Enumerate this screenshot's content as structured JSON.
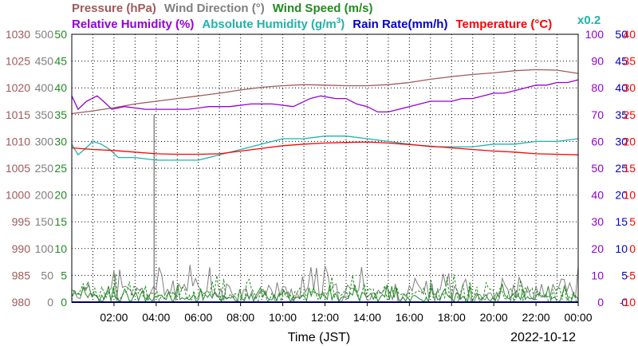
{
  "chart_data": {
    "type": "line",
    "legend": {
      "row1": [
        {
          "text": "Pressure (hPa)",
          "color": "#a05a5a"
        },
        {
          "text": "Wind Direction (°)",
          "color": "#808080"
        },
        {
          "text": "Wind Speed (m/s)",
          "color": "#228b22"
        }
      ],
      "row2": [
        {
          "text": "Relative Humidity (%)",
          "color": "#9400d3"
        },
        {
          "text": "Absolute Humidity (g/m",
          "sup": "3",
          "tail": ")",
          "color": "#20b2aa"
        },
        {
          "text": "Rain Rate(mm/h)",
          "color": "#0000cd"
        },
        {
          "text": "Temperature (°C)",
          "color": "#ff0000"
        }
      ],
      "scale_note": {
        "text": "x0.2",
        "color": "#20b2aa"
      }
    },
    "xlabel": "Time (JST)",
    "date": "2022-10-12",
    "x_range": [
      0,
      24
    ],
    "x_ticks": [
      {
        "h": 2,
        "label": "02:00"
      },
      {
        "h": 4,
        "label": "04:00"
      },
      {
        "h": 6,
        "label": "06:00"
      },
      {
        "h": 8,
        "label": "08:00"
      },
      {
        "h": 10,
        "label": "10:00"
      },
      {
        "h": 12,
        "label": "12:00"
      },
      {
        "h": 14,
        "label": "14:00"
      },
      {
        "h": 16,
        "label": "16:00"
      },
      {
        "h": 18,
        "label": "18:00"
      },
      {
        "h": 20,
        "label": "20:00"
      },
      {
        "h": 22,
        "label": "22:00"
      },
      {
        "h": 24,
        "label": "00:00"
      }
    ],
    "axes": [
      {
        "name": "Pressure (hPa)",
        "side": "left",
        "color": "#a05a5a",
        "ticks": [
          "980",
          "985",
          "990",
          "995",
          "1000",
          "1005",
          "1010",
          "1015",
          "1020",
          "1025",
          "1030"
        ],
        "ylim": [
          980,
          1030
        ]
      },
      {
        "name": "Wind Direction (°)",
        "side": "left",
        "color": "#808080",
        "ticks": [
          "0",
          "50",
          "100",
          "150",
          "200",
          "250",
          "300",
          "350",
          "400",
          "450",
          "500"
        ],
        "ylim": [
          0,
          500
        ]
      },
      {
        "name": "Wind Speed (m/s)",
        "side": "left",
        "color": "#228b22",
        "ticks": [
          "0",
          "5",
          "10",
          "15",
          "20",
          "25",
          "30",
          "35",
          "40",
          "45",
          "50"
        ],
        "ylim": [
          0,
          50
        ]
      },
      {
        "name": "Relative Humidity (%)",
        "side": "right",
        "color": "#9400d3",
        "ticks": [
          "0",
          "10",
          "20",
          "30",
          "40",
          "50",
          "60",
          "70",
          "80",
          "90",
          "100"
        ],
        "ylim": [
          0,
          100
        ]
      },
      {
        "name": "Rain Rate(mm/h)",
        "side": "right",
        "color": "#0000cd",
        "ticks": [
          "0",
          "5",
          "10",
          "15",
          "20",
          "25",
          "30",
          "35",
          "40",
          "45",
          "50"
        ],
        "ylim": [
          0,
          50
        ]
      },
      {
        "name": "Temperature (°C)",
        "side": "right",
        "color": "#ff0000",
        "ticks": [
          "-10",
          "-5",
          "0",
          "5",
          "10",
          "15",
          "20",
          "25",
          "30",
          "35",
          "40"
        ],
        "ylim": [
          -10,
          40
        ]
      }
    ],
    "grid": true,
    "series": [
      {
        "name": "Pressure (hPa)",
        "color": "#a05a5a",
        "axis": 0,
        "x": [
          0,
          1,
          2,
          3,
          4,
          5,
          6,
          7,
          8,
          9,
          10,
          11,
          12,
          13,
          14,
          15,
          16,
          17,
          18,
          19,
          20,
          21,
          22,
          23,
          24
        ],
        "values": [
          1015.2,
          1015.7,
          1016.3,
          1017.0,
          1017.5,
          1018.0,
          1018.5,
          1019.0,
          1019.6,
          1020.1,
          1020.4,
          1020.6,
          1020.5,
          1020.4,
          1020.4,
          1020.6,
          1021.0,
          1021.6,
          1022.1,
          1022.5,
          1022.8,
          1023.2,
          1023.4,
          1023.3,
          1022.7
        ]
      },
      {
        "name": "Relative Humidity (%)",
        "color": "#9400d3",
        "axis": 3,
        "x": [
          0,
          0.3,
          0.7,
          1.2,
          1.5,
          1.9,
          2.5,
          3.5,
          4.5,
          5.5,
          6.5,
          7.5,
          8.5,
          9.5,
          10.5,
          11.3,
          11.8,
          12.5,
          13.0,
          13.5,
          14.0,
          14.5,
          15.0,
          15.5,
          16.0,
          16.5,
          17.0,
          17.5,
          18.0,
          18.5,
          19.0,
          19.5,
          20.0,
          20.5,
          21.0,
          21.5,
          22.0,
          22.5,
          23.0,
          23.5,
          24.0
        ],
        "values": [
          77,
          72,
          75,
          77,
          75,
          72,
          73,
          72,
          72,
          72,
          73,
          73,
          74,
          74,
          73,
          76,
          77,
          76,
          76,
          74,
          73,
          71,
          71,
          72,
          73,
          74,
          75,
          75,
          75,
          76,
          76,
          77,
          78,
          78,
          79,
          80,
          81,
          81,
          82,
          82,
          83
        ]
      },
      {
        "name": "Absolute Humidity (g/m3)",
        "color": "#20b2aa",
        "axis": 3,
        "x": [
          0,
          0.3,
          0.6,
          1.0,
          1.4,
          1.8,
          2.2,
          3.0,
          4.0,
          5.0,
          6.0,
          7.0,
          8.0,
          9.0,
          10.0,
          11.0,
          12.0,
          12.5,
          13.0,
          14.0,
          15.0,
          16.0,
          17.0,
          18.0,
          19.0,
          20.0,
          21.0,
          22.0,
          23.0,
          24.0
        ],
        "values": [
          59,
          55,
          57,
          60,
          59,
          57,
          54,
          54,
          53,
          53,
          53,
          55,
          57,
          59,
          61,
          61,
          62,
          62,
          62,
          61,
          60,
          59,
          58,
          58,
          58,
          59,
          59,
          60,
          60,
          61
        ]
      },
      {
        "name": "Temperature (°C)",
        "color": "#ff0000",
        "axis": 5,
        "x": [
          0,
          1,
          2,
          3,
          4,
          5,
          6,
          7,
          8,
          9,
          10,
          11,
          12,
          13,
          14,
          15,
          16,
          17,
          18,
          19,
          20,
          21,
          22,
          23,
          24
        ],
        "values": [
          18.8,
          18.5,
          18.3,
          18.0,
          17.7,
          17.6,
          17.6,
          17.7,
          18.2,
          18.7,
          19.2,
          19.5,
          19.7,
          19.8,
          19.9,
          19.7,
          19.4,
          19.1,
          18.8,
          18.5,
          18.2,
          18.0,
          17.7,
          17.6,
          17.5
        ]
      },
      {
        "name": "Rain Rate(mm/h)",
        "color": "#0000cd",
        "axis": 4,
        "x": [
          0,
          24
        ],
        "values": [
          0,
          0
        ]
      }
    ],
    "noise_series": [
      {
        "name": "Wind Direction (°)",
        "color": "#808080",
        "axis": 1,
        "min": 0,
        "max": 70,
        "seed": 11,
        "points": 180,
        "spike": {
          "h": 3.9,
          "value": 350
        }
      },
      {
        "name": "Wind Speed (m/s)",
        "color": "#228b22",
        "axis": 2,
        "min": 0,
        "max": 5.5,
        "seed": 23,
        "points": 220,
        "dashed": true
      },
      {
        "name": "Wind Speed (m/s)",
        "color": "#228b22",
        "axis": 2,
        "min": 0,
        "max": 3.5,
        "seed": 37,
        "points": 220
      }
    ]
  }
}
